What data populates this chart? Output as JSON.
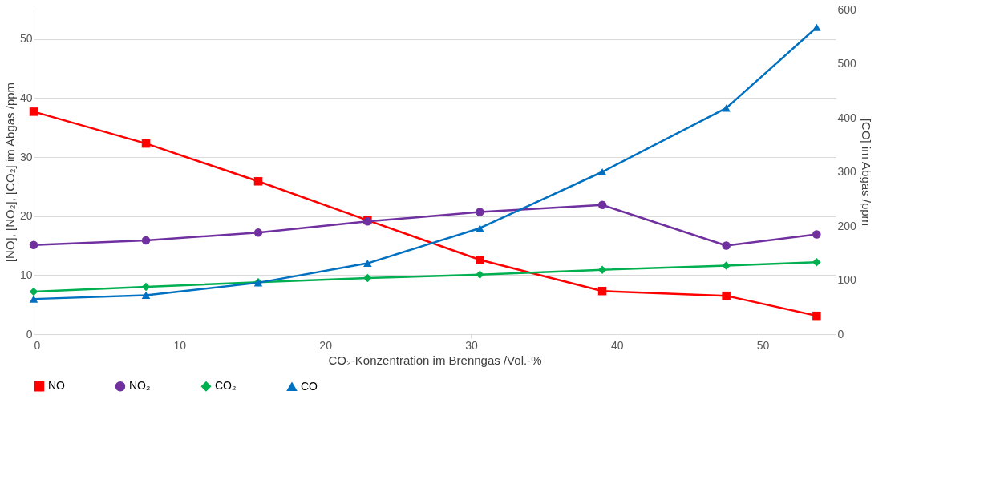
{
  "chart_data": {
    "type": "line",
    "xlabel": "CO₂-Konzentration im Brenngas /Vol.-%",
    "ylabel": "[NO], [NO₂], [CO₂] im Abgas /ppm",
    "y2label": "[CO] im Abgas /ppm",
    "x": [
      0,
      7.7,
      15.4,
      22.9,
      30.6,
      39.0,
      47.5,
      53.7
    ],
    "xlim": [
      0,
      55
    ],
    "xticks": [
      0,
      10,
      20,
      30,
      40,
      50
    ],
    "ylim": [
      0,
      55
    ],
    "yticks": [
      0,
      10,
      20,
      30,
      40,
      50
    ],
    "y2lim": [
      0,
      600
    ],
    "y2ticks": [
      0,
      100,
      200,
      300,
      400,
      500,
      600
    ],
    "series": [
      {
        "name": "NO",
        "color": "#ff0000",
        "marker": "square",
        "values": [
          37.7,
          32.3,
          25.9,
          19.3,
          12.6,
          7.3,
          6.5,
          3.1
        ]
      },
      {
        "name": "NO₂",
        "color": "#7030a0",
        "marker": "circle",
        "values": [
          15.1,
          15.9,
          17.2,
          19.1,
          20.7,
          21.9,
          15.0,
          16.9
        ]
      },
      {
        "name": "CO₂",
        "color": "#00b050",
        "marker": "diamond",
        "values": [
          7.2,
          8.0,
          8.8,
          9.5,
          10.1,
          10.9,
          11.6,
          12.2
        ]
      },
      {
        "name": "CO",
        "color": "#0070c0",
        "marker": "triangle",
        "axis": "y2",
        "values": [
          65,
          72,
          95,
          131,
          196,
          300,
          418,
          567
        ]
      }
    ],
    "grid": "y",
    "legend": "bottom",
    "line_style": "solid"
  }
}
